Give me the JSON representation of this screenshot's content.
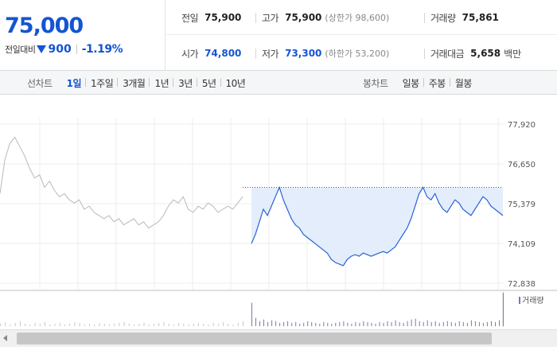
{
  "summary": {
    "price": "75,000",
    "change_label": "전일대비",
    "change_icon": "down-triangle-icon",
    "change_abs": "900",
    "change_rate": "-1.19%",
    "accent_color": "#1554d3",
    "stats": {
      "prev_close": {
        "label": "전일",
        "value": "75,900"
      },
      "high": {
        "label": "고가",
        "value": "75,900",
        "sub": "(상한가 98,600)"
      },
      "volume": {
        "label": "거래량",
        "value": "75,861"
      },
      "open": {
        "label": "시가",
        "value": "74,800"
      },
      "low": {
        "label": "저가",
        "value": "73,300",
        "sub": "(하한가 53,200)"
      },
      "trade_value": {
        "label": "거래대금",
        "value": "5,658",
        "unit": "백만"
      }
    }
  },
  "toolbar": {
    "line_chart_title": "선차트",
    "line_periods": [
      {
        "label": "1일",
        "active": true
      },
      {
        "label": "1주일",
        "active": false
      },
      {
        "label": "3개월",
        "active": false
      },
      {
        "label": "1년",
        "active": false
      },
      {
        "label": "3년",
        "active": false
      },
      {
        "label": "5년",
        "active": false
      },
      {
        "label": "10년",
        "active": false
      }
    ],
    "candle_chart_title": "봉차트",
    "candle_periods": [
      {
        "label": "일봉"
      },
      {
        "label": "주봉"
      },
      {
        "label": "월봉"
      }
    ]
  },
  "chart_data": {
    "type": "line",
    "ytick_labels": [
      "77,920",
      "76,650",
      "75,379",
      "74,109",
      "72,838"
    ],
    "ylim": [
      72838,
      77920
    ],
    "grid": true,
    "reference_line": 75900,
    "volume_legend": "거래량",
    "series": [
      {
        "kind": "previous-day",
        "color": "#b9b9b9",
        "values": [
          75700,
          76800,
          77300,
          77500,
          77200,
          76900,
          76500,
          76200,
          76300,
          75900,
          76100,
          75800,
          75600,
          75700,
          75500,
          75400,
          75500,
          75200,
          75300,
          75100,
          75000,
          74900,
          75000,
          74800,
          74900,
          74700,
          74800,
          74900,
          74700,
          74800,
          74600,
          74700,
          74800,
          75000,
          75300,
          75500,
          75400,
          75600,
          75200,
          75100,
          75300,
          75200,
          75400,
          75300,
          75100,
          75200,
          75300,
          75200,
          75400,
          75600
        ]
      },
      {
        "kind": "today",
        "color": "#2962d9",
        "values": [
          74100,
          74400,
          74800,
          75200,
          75000,
          75300,
          75600,
          75900,
          75500,
          75200,
          74900,
          74700,
          74600,
          74400,
          74300,
          74200,
          74100,
          74000,
          73900,
          73800,
          73600,
          73500,
          73450,
          73400,
          73600,
          73700,
          73750,
          73700,
          73800,
          73750,
          73700,
          73750,
          73800,
          73850,
          73800,
          73900,
          74000,
          74200,
          74400,
          74600,
          74900,
          75300,
          75700,
          75900,
          75600,
          75500,
          75700,
          75400,
          75200,
          75100,
          75300,
          75500,
          75400,
          75200,
          75100,
          75000,
          75200,
          75400,
          75600,
          75500,
          75300,
          75200,
          75100,
          75000
        ]
      }
    ],
    "volume": {
      "previous_day": [
        3,
        5,
        2,
        4,
        6,
        3,
        2,
        4,
        3,
        5,
        2,
        3,
        4,
        2,
        3,
        5,
        4,
        2,
        3,
        2,
        4,
        3,
        2,
        3,
        4,
        5,
        3,
        2,
        3,
        4,
        2,
        3,
        4,
        5,
        3,
        2,
        4,
        3,
        2,
        3,
        4,
        3,
        2,
        4,
        3,
        5,
        3,
        2,
        4,
        6
      ],
      "today": [
        28,
        10,
        6,
        8,
        5,
        7,
        6,
        4,
        5,
        6,
        4,
        5,
        3,
        4,
        6,
        5,
        4,
        3,
        5,
        4,
        3,
        4,
        5,
        6,
        4,
        3,
        5,
        4,
        6,
        5,
        4,
        3,
        5,
        4,
        6,
        5,
        7,
        5,
        4,
        6,
        8,
        9,
        6,
        5,
        7,
        5,
        6,
        4,
        5,
        6,
        5,
        4,
        6,
        5,
        4,
        7,
        6,
        5,
        4,
        5,
        6,
        5,
        7,
        40
      ]
    }
  }
}
